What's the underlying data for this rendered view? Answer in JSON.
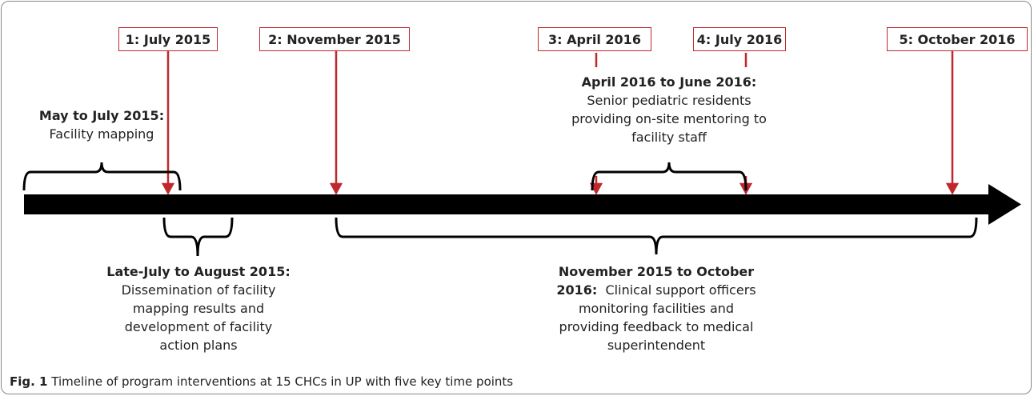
{
  "milestones": [
    "1: July 2015",
    "2: November 2015",
    "3: April 2016",
    "4: July 2016",
    "5: October 2016"
  ],
  "periods": [
    {
      "title": "May to July 2015:",
      "description": "Facility mapping"
    },
    {
      "title": "Late-July to August 2015:",
      "description": "Dissemination of facility mapping results and development of facility action plans"
    },
    {
      "title": "April 2016 to June 2016:",
      "description": "Senior pediatric residents providing on-site mentoring to facility staff"
    },
    {
      "title": "November 2015 to October 2016:",
      "description": "Clinical support officers monitoring facilities and providing feedback to medical superintendent"
    }
  ],
  "caption": {
    "label": "Fig. 1",
    "text": "Timeline of program interventions at 15 CHCs in UP with five key time points"
  }
}
